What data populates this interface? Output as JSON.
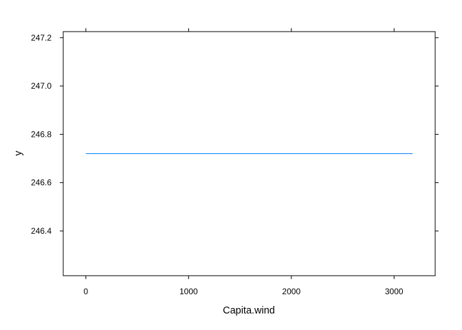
{
  "chart_data": {
    "type": "line",
    "title": "",
    "xlabel": "Capita.wind",
    "ylabel": "y",
    "xlim": [
      -220,
      3400
    ],
    "ylim": [
      246.215,
      247.225
    ],
    "x_ticks": [
      0,
      1000,
      2000,
      3000
    ],
    "y_ticks": [
      246.4,
      246.6,
      246.8,
      247.0,
      247.2
    ],
    "x_tick_labels": [
      "0",
      "1000",
      "2000",
      "3000"
    ],
    "y_tick_labels": [
      "246.4",
      "246.6",
      "246.8",
      "247.0",
      "247.2"
    ],
    "grid": false,
    "legend": "none",
    "series": [
      {
        "x": [
          0,
          3180
        ],
        "y": [
          246.72,
          246.72
        ],
        "color": "#0080ff"
      }
    ]
  }
}
